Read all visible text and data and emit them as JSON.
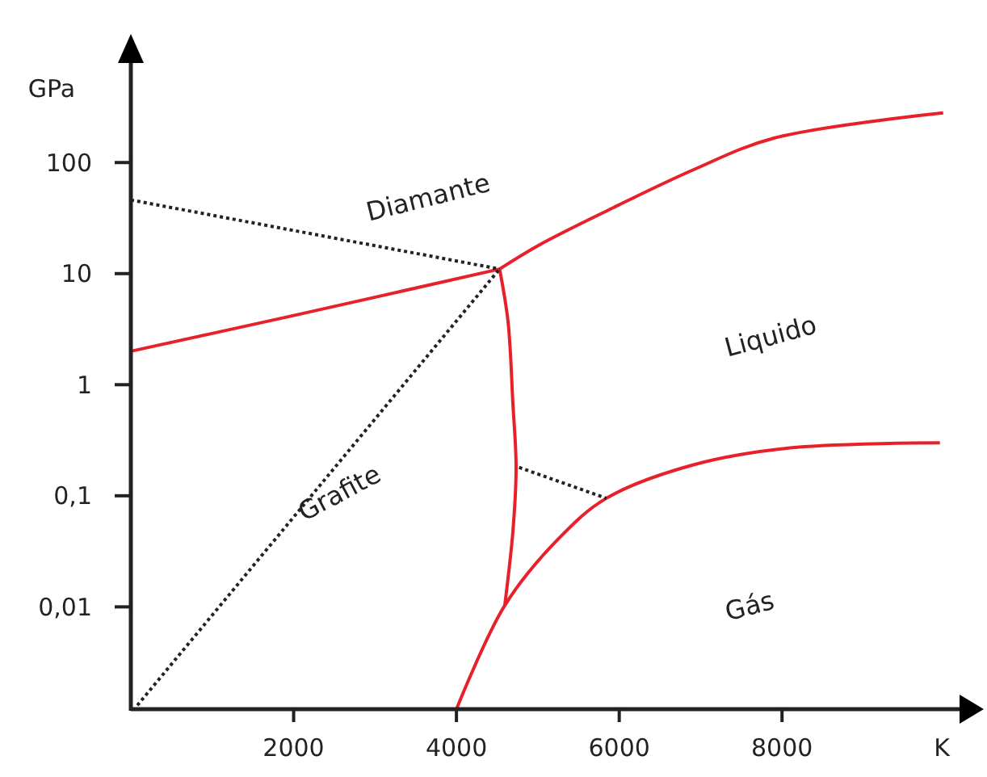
{
  "chart_data": {
    "type": "line",
    "xlabel": "K",
    "ylabel": "GPa",
    "log": "y",
    "grid": false,
    "xlim": [
      0,
      10300
    ],
    "ylim": [
      0.0012,
      900
    ],
    "xticks": [
      2000,
      4000,
      6000,
      8000
    ],
    "yticks": [
      {
        "value": 0.01,
        "label": "0,01"
      },
      {
        "value": 0.1,
        "label": "0,1"
      },
      1,
      10,
      100
    ],
    "series": [
      {
        "color": "#e8202a",
        "line_style": "solid",
        "x": [
          0,
          2000,
          4530
        ],
        "values": [
          2.0,
          4.2,
          11
        ]
      },
      {
        "color": "#e8202a",
        "line_style": "solid",
        "x": [
          4530,
          5010,
          5920,
          6910,
          7900,
          9980
        ],
        "values": [
          11,
          18,
          39,
          86,
          166,
          280
        ]
      },
      {
        "color": "#e8202a",
        "line_style": "solid",
        "x": [
          4530,
          4634,
          4693,
          4733,
          4693,
          4594
        ],
        "values": [
          11,
          3.7,
          0.69,
          0.18,
          0.047,
          0.0103
        ]
      },
      {
        "color": "#e8202a",
        "line_style": "solid",
        "x": [
          4000,
          4594,
          5267,
          5842,
          6911,
          8100,
          9940
        ],
        "values": [
          0.0012,
          0.0103,
          0.042,
          0.095,
          0.19,
          0.27,
          0.3
        ]
      },
      {
        "color": "#222222",
        "line_style": "dotted",
        "x": [
          0,
          4530
        ],
        "values": [
          46,
          11
        ]
      },
      {
        "color": "#222222",
        "line_style": "dotted",
        "x": [
          80,
          4530
        ],
        "values": [
          0.0013,
          11
        ]
      },
      {
        "color": "#222222",
        "line_style": "dotted",
        "x": [
          4770,
          5842
        ],
        "values": [
          0.18,
          0.095
        ]
      }
    ],
    "annotations": [
      "Diamante",
      "Liquido",
      "Grafite",
      "Gás"
    ]
  }
}
